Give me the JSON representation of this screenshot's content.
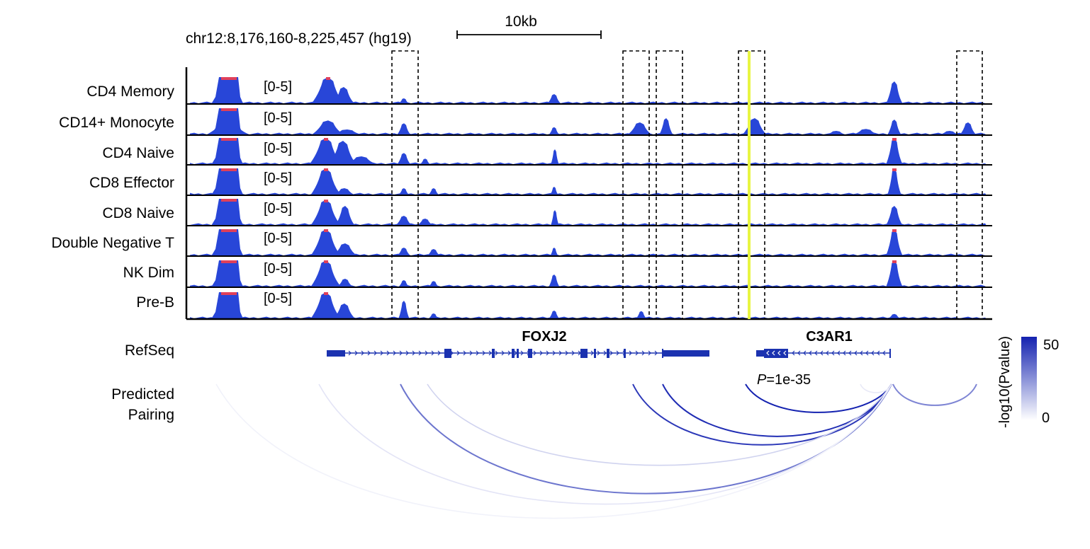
{
  "header": {
    "locus": "chr12:8,176,160-8,225,457 (hg19)",
    "scale_label": "10kb"
  },
  "colors": {
    "signal": "#2846d8",
    "saturation": "#e0405a",
    "highlight": "#e8f542",
    "gene_model": "#1b32b0",
    "arc_max": "#1422b0",
    "arc_min": "#ffffff"
  },
  "tracks": [
    {
      "name": "CD4 Memory",
      "range": "[0-5]"
    },
    {
      "name": "CD14+ Monocyte",
      "range": "[0-5]"
    },
    {
      "name": "CD4 Naive",
      "range": "[0-5]"
    },
    {
      "name": "CD8 Effector",
      "range": "[0-5]"
    },
    {
      "name": "CD8 Naive",
      "range": "[0-5]"
    },
    {
      "name": "Double Negative T",
      "range": "[0-5]"
    },
    {
      "name": "NK Dim",
      "range": "[0-5]"
    },
    {
      "name": "Pre-B",
      "range": "[0-5]"
    }
  ],
  "refseq": {
    "label": "RefSeq",
    "genes": [
      {
        "name": "FOXJ2",
        "strand": "+"
      },
      {
        "name": "C3AR1",
        "strand": "-"
      }
    ]
  },
  "pairing": {
    "label_line1": "Predicted",
    "label_line2": "Pairing",
    "annotation_italic": "P",
    "annotation_rest": "=1e-35"
  },
  "colorbar": {
    "title": "-log10(Pvalue)",
    "max_label": "50",
    "min_label": "0"
  }
}
